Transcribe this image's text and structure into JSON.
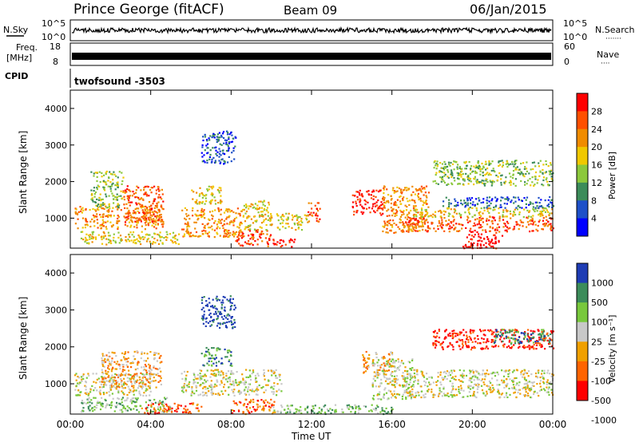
{
  "header": {
    "station": "Prince George (fitACF)",
    "beam": "Beam 09",
    "date": "06/Jan/2015"
  },
  "nsky": {
    "label": "N.Sky",
    "ticks": [
      "10^5",
      "10^0"
    ],
    "right_ticks": [
      "10^5",
      "10^0"
    ],
    "right_label": "N.Search",
    "right_label_dots": "·······"
  },
  "freq": {
    "label_line1": "Freq.",
    "label_line2": "[MHz]",
    "left_ticks": [
      "18",
      "8"
    ],
    "right_ticks": [
      "60",
      "0"
    ],
    "right_label": "Nave",
    "right_label_dots": "····"
  },
  "cpid": {
    "label": "CPID",
    "value": "twofsound -3503"
  },
  "power_panel": {
    "ylabel": "Slant Range [km]",
    "yticks": [
      1000,
      2000,
      3000,
      4000
    ],
    "colorbar_label": "Power [dB]",
    "colorbar_ticks": [
      "28",
      "24",
      "20",
      "16",
      "12",
      "8",
      "4"
    ],
    "colors": [
      "#0000ff",
      "#1e50c8",
      "#3c8c5a",
      "#8cc83c",
      "#f0c800",
      "#f08c00",
      "#ff5000",
      "#ff0000"
    ]
  },
  "velocity_panel": {
    "ylabel": "Slant Range [km]",
    "yticks": [
      1000,
      2000,
      3000,
      4000
    ],
    "colorbar_label": "Velocity [m s⁻¹]",
    "colorbar_ticks": [
      "1000",
      "500",
      "100",
      "25",
      "-25",
      "-100",
      "-500",
      "-1000"
    ],
    "colors": [
      "#1e3cb4",
      "#3c8c5a",
      "#78c83c",
      "#c8c8c8",
      "#f0a000",
      "#ff6400",
      "#ff0000"
    ]
  },
  "x_axis": {
    "ticks": [
      "00:00",
      "04:00",
      "08:00",
      "12:00",
      "16:00",
      "20:00",
      "00:00"
    ],
    "label": "Time UT"
  },
  "chart_data": {
    "type": "heatmap",
    "x_range_hours": [
      0,
      24
    ],
    "y_range_km": [
      180,
      4500
    ],
    "power_blobs": [
      {
        "t0": 0.2,
        "t1": 4.6,
        "r0": 720,
        "r1": 1350,
        "level": 5
      },
      {
        "t0": 0.5,
        "t1": 5.5,
        "r0": 300,
        "r1": 650,
        "level": 4
      },
      {
        "t0": 1.0,
        "t1": 2.6,
        "r0": 1300,
        "r1": 2300,
        "level": 3
      },
      {
        "t0": 2.6,
        "t1": 4.6,
        "r0": 900,
        "r1": 1900,
        "level": 6
      },
      {
        "t0": 5.5,
        "t1": 8.5,
        "r0": 500,
        "r1": 1300,
        "level": 5
      },
      {
        "t0": 6.0,
        "t1": 7.5,
        "r0": 1400,
        "r1": 1900,
        "level": 4
      },
      {
        "t0": 6.5,
        "t1": 8.2,
        "r0": 2500,
        "r1": 3400,
        "level": 1
      },
      {
        "t0": 8.2,
        "t1": 10.0,
        "r0": 250,
        "r1": 700,
        "level": 6
      },
      {
        "t0": 8.5,
        "t1": 10.0,
        "r0": 700,
        "r1": 1500,
        "level": 4
      },
      {
        "t0": 9.8,
        "t1": 11.2,
        "r0": 230,
        "r1": 450,
        "level": 7
      },
      {
        "t0": 10.2,
        "t1": 11.8,
        "r0": 700,
        "r1": 1150,
        "level": 4
      },
      {
        "t0": 11.8,
        "t1": 12.4,
        "r0": 900,
        "r1": 1450,
        "level": 6
      },
      {
        "t0": 14.0,
        "t1": 15.5,
        "r0": 1100,
        "r1": 1800,
        "level": 7
      },
      {
        "t0": 15.5,
        "t1": 17.8,
        "r0": 600,
        "r1": 1900,
        "level": 5
      },
      {
        "t0": 16.5,
        "t1": 24.0,
        "r0": 650,
        "r1": 1050,
        "level": 6
      },
      {
        "t0": 17.0,
        "t1": 24.0,
        "r0": 1050,
        "r1": 1300,
        "level": 4
      },
      {
        "t0": 18.0,
        "t1": 24.0,
        "r0": 1900,
        "r1": 2600,
        "level": 3
      },
      {
        "t0": 19.5,
        "t1": 21.5,
        "r0": 180,
        "r1": 650,
        "level": 7
      },
      {
        "t0": 18.5,
        "t1": 24.0,
        "r0": 1300,
        "r1": 1600,
        "level": 1
      }
    ],
    "velocity_blobs": [
      {
        "t0": 0.2,
        "t1": 4.0,
        "r0": 700,
        "r1": 1300,
        "level": 3
      },
      {
        "t0": 1.5,
        "t1": 4.5,
        "r0": 900,
        "r1": 1900,
        "level": 4
      },
      {
        "t0": 0.5,
        "t1": 5.0,
        "r0": 250,
        "r1": 650,
        "level": 2
      },
      {
        "t0": 3.5,
        "t1": 6.5,
        "r0": 200,
        "r1": 500,
        "level": 5
      },
      {
        "t0": 5.5,
        "t1": 10.5,
        "r0": 700,
        "r1": 1400,
        "level": 3
      },
      {
        "t0": 6.5,
        "t1": 8.0,
        "r0": 1500,
        "r1": 2000,
        "level": 1
      },
      {
        "t0": 6.5,
        "t1": 8.2,
        "r0": 2500,
        "r1": 3400,
        "level": 0
      },
      {
        "t0": 8.0,
        "t1": 10.2,
        "r0": 200,
        "r1": 600,
        "level": 5
      },
      {
        "t0": 14.5,
        "t1": 16.0,
        "r0": 1300,
        "r1": 1900,
        "level": 4
      },
      {
        "t0": 15.0,
        "t1": 17.0,
        "r0": 600,
        "r1": 1700,
        "level": 3
      },
      {
        "t0": 16.5,
        "t1": 24.0,
        "r0": 650,
        "r1": 1400,
        "level": 3
      },
      {
        "t0": 18.0,
        "t1": 24.0,
        "r0": 1950,
        "r1": 2500,
        "level": 6
      },
      {
        "t0": 21.0,
        "t1": 24.0,
        "r0": 2100,
        "r1": 2500,
        "level": 1
      },
      {
        "t0": 10.0,
        "t1": 16.0,
        "r0": 200,
        "r1": 450,
        "level": 2
      }
    ]
  }
}
